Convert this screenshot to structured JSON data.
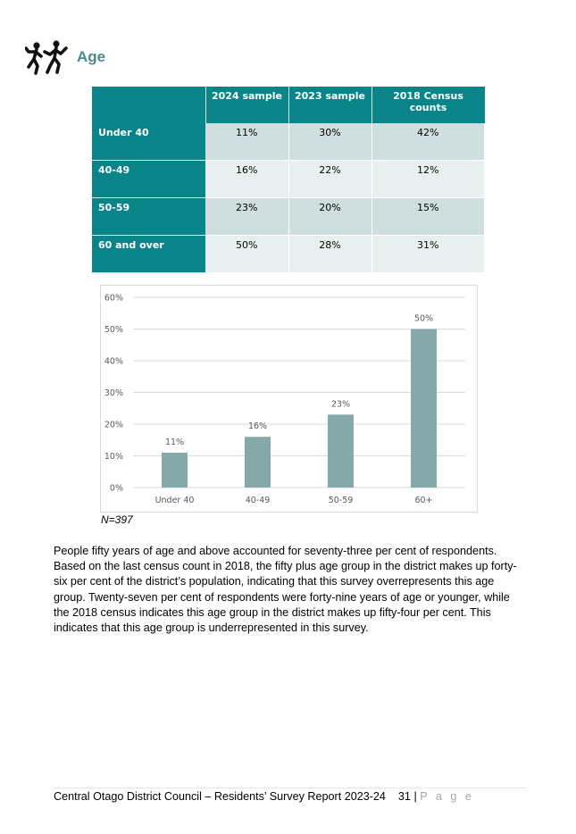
{
  "section": {
    "title": "Age",
    "icon": "people-walking-icon"
  },
  "table": {
    "headers": [
      "",
      "2024 sample",
      "2023 sample",
      "2018 Census counts"
    ],
    "rows": [
      {
        "label": "Under 40",
        "values": [
          "11%",
          "30%",
          "42%"
        ]
      },
      {
        "label": "40-49",
        "values": [
          "16%",
          "22%",
          "12%"
        ]
      },
      {
        "label": "50-59",
        "values": [
          "23%",
          "20%",
          "15%"
        ]
      },
      {
        "label": "60 and over",
        "values": [
          "50%",
          "28%",
          "31%"
        ]
      }
    ]
  },
  "chart_data": {
    "type": "bar",
    "categories": [
      "Under 40",
      "40-49",
      "50-59",
      "60+"
    ],
    "values": [
      11,
      16,
      23,
      50
    ],
    "data_labels": [
      "11%",
      "16%",
      "23%",
      "50%"
    ],
    "y_ticks": [
      "0%",
      "10%",
      "20%",
      "30%",
      "40%",
      "50%",
      "60%"
    ],
    "ylim": [
      0,
      60
    ],
    "grid": true,
    "bar_color": "#85a8a8",
    "title": "",
    "xlabel": "",
    "ylabel": ""
  },
  "note": "N=397",
  "body_text": "People fifty years of age and above accounted for seventy-three per cent of respondents. Based on the last census count in 2018, the fifty plus age group in the district makes up forty-six per cent of the district’s population, indicating that this survey overrepresents this age group.  Twenty-seven per cent of respondents were forty-nine years of age or younger, while the 2018 census indicates this age group in the district makes up fifty-four per cent. This indicates that this age group is underrepresented in this survey.",
  "footer": {
    "text": "Central Otago District Council – Residents’ Survey Report 2023-24",
    "page_number": "31",
    "separator": "|",
    "page_word": "P a g e"
  },
  "colors": {
    "teal": "#098488",
    "heading": "#4e8a8c",
    "bar": "#85a8a8"
  }
}
